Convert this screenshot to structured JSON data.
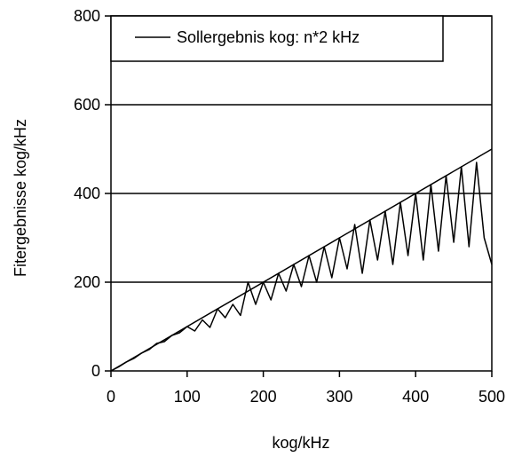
{
  "chart_data": {
    "type": "line",
    "xlabel": "kog/kHz",
    "ylabel": "Fitergebnisse kog/kHz",
    "xlim": [
      0,
      500
    ],
    "ylim": [
      0,
      800
    ],
    "x_ticks": [
      "0",
      "100",
      "200",
      "300",
      "400",
      "500"
    ],
    "y_ticks": [
      "0",
      "200",
      "400",
      "600",
      "800"
    ],
    "grid": "horizontal",
    "legend_position": "top",
    "line_color": "#000000",
    "series": [
      {
        "name": "Sollergebnis kog: n*2 kHz",
        "style": "solid",
        "x": [
          0,
          500
        ],
        "y": [
          0,
          500
        ]
      },
      {
        "name": "",
        "style": "noisy-fit",
        "x": [
          0,
          10,
          20,
          30,
          40,
          50,
          60,
          70,
          80,
          90,
          100,
          110,
          120,
          130,
          140,
          150,
          160,
          170,
          180,
          190,
          200,
          210,
          220,
          230,
          240,
          250,
          260,
          270,
          280,
          290,
          300,
          310,
          320,
          330,
          340,
          350,
          360,
          370,
          380,
          390,
          400,
          410,
          420,
          430,
          440,
          450,
          460,
          470,
          480,
          490,
          500
        ],
        "y": [
          0,
          9,
          20,
          28,
          40,
          48,
          62,
          66,
          80,
          86,
          100,
          90,
          115,
          98,
          140,
          120,
          150,
          125,
          200,
          150,
          200,
          160,
          220,
          180,
          240,
          190,
          260,
          200,
          280,
          210,
          300,
          230,
          330,
          220,
          340,
          250,
          360,
          240,
          380,
          260,
          400,
          250,
          420,
          270,
          440,
          290,
          460,
          280,
          470,
          300,
          240
        ]
      }
    ]
  }
}
